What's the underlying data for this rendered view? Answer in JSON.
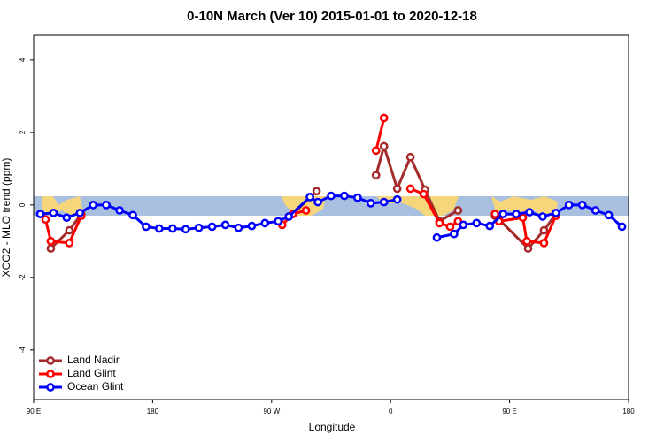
{
  "chart_data": {
    "type": "line",
    "title": "0-10N March (Ver 10)   2015-01-01 to 2020-12-18",
    "xlabel": "Longitude",
    "ylabel": "XCO2 - MLO trend (ppm)",
    "xlim": [
      90,
      540
    ],
    "ylim": [
      -5.37,
      4.68
    ],
    "xticks": [
      {
        "value": 90,
        "label": "90 E"
      },
      180,
      {
        "value": 270,
        "label": "90 W"
      },
      {
        "value": 360,
        "label": "0"
      },
      {
        "value": 450,
        "label": "90 E"
      },
      {
        "value": 540,
        "label": "180"
      }
    ],
    "yticks": [
      -4,
      -2,
      0,
      2,
      4
    ],
    "legend": "bottom-left",
    "series": [
      {
        "name": "Land Nadir",
        "color": "#a52a2a",
        "x": [
          103,
          117,
          126,
          200,
          286,
          304,
          330,
          349,
          355,
          365,
          375,
          386,
          397,
          411,
          425,
          439,
          442,
          464,
          476,
          485
        ],
        "values": [
          -1.2,
          -0.7,
          -0.25,
          null,
          -0.25,
          0.38,
          null,
          0.82,
          1.62,
          0.45,
          1.32,
          0.42,
          -0.45,
          -0.15,
          null,
          -0.3,
          -0.4,
          -1.2,
          -0.7,
          -0.25
        ]
      },
      {
        "name": "Land Glint",
        "color": "#ff0000",
        "x": [
          99,
          103,
          117,
          126,
          200,
          278,
          286,
          296,
          320,
          349,
          355,
          365,
          375,
          385,
          397,
          405,
          411,
          425,
          439,
          442,
          460,
          463,
          476,
          485
        ],
        "values": [
          -0.4,
          -1.0,
          -1.05,
          -0.3,
          null,
          -0.55,
          -0.25,
          -0.15,
          null,
          1.5,
          2.4,
          null,
          0.45,
          0.3,
          -0.5,
          -0.6,
          -0.45,
          null,
          -0.25,
          -0.45,
          -0.35,
          -1.0,
          -1.05,
          -0.3
        ]
      },
      {
        "name": "Ocean Glint",
        "color": "#0000ff",
        "x": [
          95,
          105,
          115,
          125,
          135,
          145,
          155,
          165,
          175,
          185,
          195,
          205,
          215,
          225,
          235,
          245,
          255,
          265,
          275,
          283,
          299,
          305,
          315,
          325,
          335,
          345,
          355,
          365,
          380,
          395,
          408,
          415,
          425,
          435,
          445,
          455,
          465,
          475,
          485,
          495,
          505,
          515,
          525,
          535
        ],
        "values": [
          -0.25,
          -0.22,
          -0.35,
          -0.22,
          0.0,
          0.0,
          -0.15,
          -0.28,
          -0.6,
          -0.65,
          -0.65,
          -0.67,
          -0.63,
          -0.6,
          -0.55,
          -0.63,
          -0.58,
          -0.5,
          -0.45,
          -0.32,
          0.22,
          0.08,
          0.25,
          0.25,
          0.2,
          0.05,
          0.08,
          0.15,
          null,
          -0.9,
          -0.8,
          -0.55,
          -0.5,
          -0.58,
          -0.25,
          -0.25,
          -0.2,
          -0.32,
          -0.22,
          0.0,
          0.0,
          -0.15,
          -0.28,
          -0.6
        ]
      }
    ]
  }
}
